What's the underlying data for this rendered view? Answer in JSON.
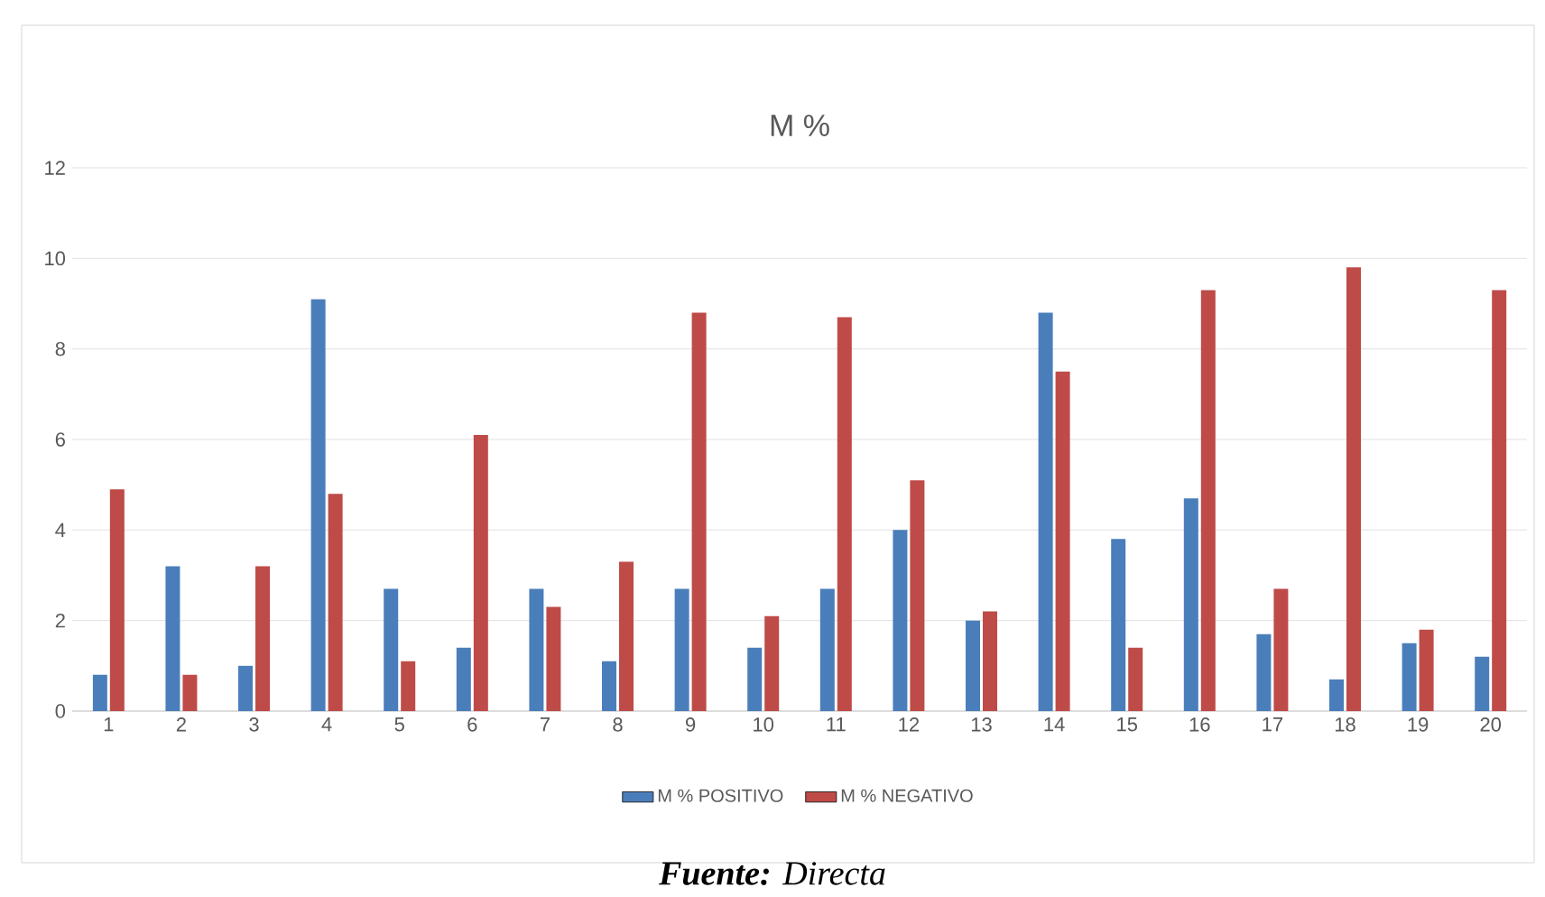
{
  "chart_data": {
    "type": "bar",
    "title": "M %",
    "categories": [
      "1",
      "2",
      "3",
      "4",
      "5",
      "6",
      "7",
      "8",
      "9",
      "10",
      "11",
      "12",
      "13",
      "14",
      "15",
      "16",
      "17",
      "18",
      "19",
      "20"
    ],
    "series": [
      {
        "name": "M % POSITIVO",
        "color": "#4a7ebb",
        "values": [
          0.8,
          3.2,
          1.0,
          9.1,
          2.7,
          1.4,
          2.7,
          1.1,
          2.7,
          1.4,
          2.7,
          4.0,
          2.0,
          8.8,
          3.8,
          4.7,
          1.7,
          0.7,
          1.5,
          1.2
        ]
      },
      {
        "name": "M % NEGATIVO",
        "color": "#be4b48",
        "values": [
          4.9,
          0.8,
          3.2,
          4.8,
          1.1,
          6.1,
          2.3,
          3.3,
          8.8,
          2.1,
          8.7,
          5.1,
          2.2,
          7.5,
          1.4,
          9.3,
          2.7,
          9.8,
          1.8,
          9.3
        ]
      }
    ],
    "ylim": [
      0,
      12
    ],
    "yticks": [
      0,
      2,
      4,
      6,
      8,
      10,
      12
    ],
    "grid": "y",
    "legend": "bottom",
    "annotations": [
      "**Fuente:** Directa"
    ]
  }
}
